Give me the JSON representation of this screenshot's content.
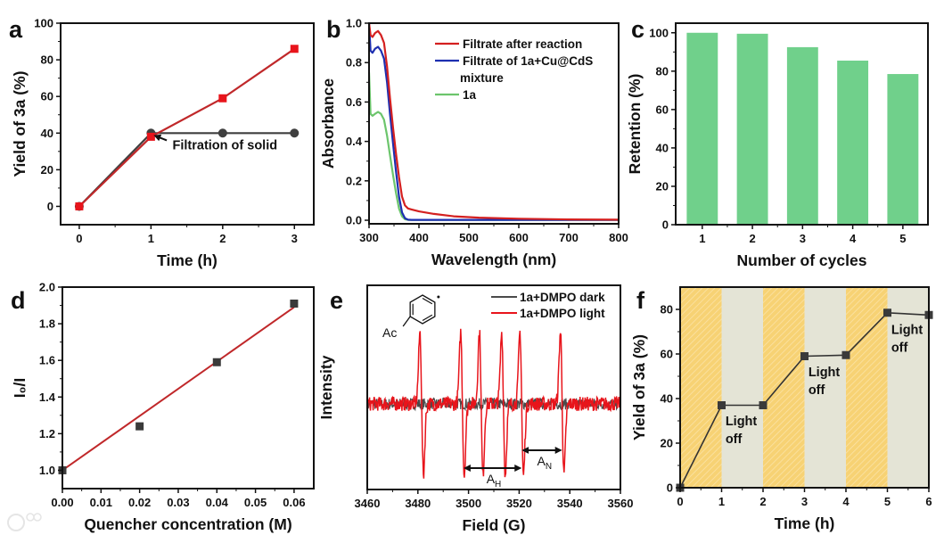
{
  "figure": {
    "watermark": "大数跨境"
  },
  "chart_data": [
    {
      "panel": "a",
      "type": "line",
      "xlabel": "Time (h)",
      "ylabel": "Yield of 3a (%)",
      "xlim": [
        -0.26,
        3.27
      ],
      "ylim": [
        -10,
        100
      ],
      "xticks": [
        "0",
        "1",
        "2",
        "3"
      ],
      "yticks": [
        "0",
        "20",
        "40",
        "60",
        "80",
        "100"
      ],
      "series": [
        {
          "marker": "circle",
          "color": "#3f3f3f",
          "line_color": "#3f3f3f",
          "x": [
            0,
            1,
            2,
            3
          ],
          "y": [
            0,
            40,
            40,
            40
          ]
        },
        {
          "marker": "square",
          "color": "#e8141b",
          "line_color": "#c0282a",
          "x": [
            0,
            1,
            2,
            3
          ],
          "y": [
            0,
            38,
            59,
            86
          ]
        }
      ],
      "annotations": [
        {
          "text": "Filtration of solid",
          "x": 1.3,
          "y": 33.5,
          "arrow_from": [
            1.22,
            36
          ],
          "arrow_to": [
            1.06,
            38.5
          ]
        }
      ]
    },
    {
      "panel": "b",
      "type": "line",
      "xlabel": "Wavelength (nm)",
      "ylabel": "Absorbance",
      "xlim": [
        300,
        800
      ],
      "ylim": [
        -0.018,
        1.0
      ],
      "xticks": [
        "300",
        "400",
        "500",
        "600",
        "700",
        "800"
      ],
      "yticks": [
        "0.0",
        "0.2",
        "0.4",
        "0.6",
        "0.8",
        "1.0"
      ],
      "x": [
        300,
        303,
        307,
        312,
        318,
        324,
        330,
        336,
        342,
        348,
        354,
        360,
        366,
        372,
        378,
        385,
        400,
        430,
        470,
        520,
        600,
        700,
        800
      ],
      "series": [
        {
          "color": "#d42020",
          "y": [
            1.0,
            0.94,
            0.93,
            0.95,
            0.96,
            0.94,
            0.9,
            0.78,
            0.62,
            0.47,
            0.34,
            0.22,
            0.12,
            0.075,
            0.06,
            0.055,
            0.045,
            0.032,
            0.02,
            0.013,
            0.008,
            0.004,
            0.003
          ]
        },
        {
          "color": "#1d2fb0",
          "y": [
            1.0,
            0.86,
            0.85,
            0.87,
            0.88,
            0.86,
            0.82,
            0.7,
            0.54,
            0.39,
            0.25,
            0.12,
            0.04,
            0.01,
            0.003,
            0.002,
            0.002,
            0.002,
            0.002,
            0.002,
            0.002,
            0.002,
            0.002
          ]
        },
        {
          "color": "#6cc56c",
          "y": [
            0.75,
            0.54,
            0.53,
            0.54,
            0.55,
            0.54,
            0.51,
            0.43,
            0.33,
            0.23,
            0.14,
            0.06,
            0.02,
            0.005,
            0.002,
            0.002,
            0.002,
            0.002,
            0.002,
            0.002,
            0.002,
            0.002,
            0.002
          ]
        }
      ],
      "legend": [
        [
          "Filtrate after reaction"
        ],
        [
          "Filtrate of 1a+Cu@CdS",
          "mixture"
        ],
        [
          "1a"
        ]
      ]
    },
    {
      "panel": "c",
      "type": "bar",
      "xlabel": "Number of cycles",
      "ylabel": "Retention (%)",
      "xlim": [
        0.47,
        5.5
      ],
      "ylim": [
        0,
        105
      ],
      "xticks": [
        "1",
        "2",
        "3",
        "4",
        "5"
      ],
      "yticks": [
        "0",
        "20",
        "40",
        "60",
        "80",
        "100"
      ],
      "categories": [
        1,
        2,
        3,
        4,
        5
      ],
      "values": [
        100,
        99.5,
        92.5,
        85.5,
        78.5
      ],
      "color": "#70d08b"
    },
    {
      "panel": "d",
      "type": "scatter",
      "xlabel": "Quencher concentration (M)",
      "ylabel": "I₀/I",
      "xlim": [
        0,
        0.0651
      ],
      "ylim": [
        0.9,
        2.0
      ],
      "xticks": [
        "0.00",
        "0.01",
        "0.02",
        "0.03",
        "0.04",
        "0.05",
        "0.06"
      ],
      "yticks": [
        "1.0",
        "1.2",
        "1.4",
        "1.6",
        "1.8",
        "2.0"
      ],
      "x": [
        0,
        0.02,
        0.04,
        0.06
      ],
      "y": [
        1.0,
        1.24,
        1.59,
        1.91
      ],
      "fit": {
        "x": [
          0,
          0.06
        ],
        "y": [
          1.0,
          1.89
        ],
        "color": "#c0282a"
      },
      "marker_color": "#3a3a3a"
    },
    {
      "panel": "e",
      "type": "line",
      "xlabel": "Field (G)",
      "ylabel": "Intensity",
      "xlim": [
        3460,
        3560
      ],
      "ylim": [
        -1.2,
        1.66
      ],
      "xticks": [
        "3460",
        "3480",
        "3500",
        "3520",
        "3540",
        "3560"
      ],
      "yticks": [],
      "series": [
        {
          "name": "1a+DMPO dark",
          "color": "#4a4a4a",
          "lines": []
        },
        {
          "name": "1a+DMPO light",
          "color": "#e8141b",
          "lines": [
            3481.5,
            3497.6,
            3505,
            3513.8,
            3521,
            3537
          ]
        }
      ],
      "molecule_label": "Ac",
      "arrows": [
        {
          "label": "A",
          "sub": "H",
          "x": [
            3498,
            3521
          ],
          "y": -0.9,
          "label_x": 3510
        },
        {
          "label": "A",
          "sub": "N",
          "x": [
            3521,
            3537
          ],
          "y": -0.65,
          "label_x": 3530
        }
      ]
    },
    {
      "panel": "f",
      "type": "line",
      "xlabel": "Time (h)",
      "ylabel": "Yield of 3a (%)",
      "xlim": [
        0,
        6
      ],
      "ylim": [
        0,
        90
      ],
      "xticks": [
        "0",
        "1",
        "2",
        "3",
        "4",
        "5",
        "6"
      ],
      "yticks": [
        "0",
        "20",
        "40",
        "60",
        "80"
      ],
      "x": [
        0,
        1,
        2,
        3,
        4,
        5,
        6
      ],
      "y": [
        0,
        37,
        37,
        59,
        59.5,
        78.5,
        77.5
      ],
      "light_on_intervals": [
        [
          0,
          1
        ],
        [
          2,
          3
        ],
        [
          4,
          5
        ]
      ],
      "light_on_color": "#f7d274",
      "light_off_color": "#e4e4d6",
      "annotations": [
        {
          "lines": [
            "Light",
            "off"
          ],
          "x": 1.05,
          "y": 28
        },
        {
          "lines": [
            "Light",
            "off"
          ],
          "x": 3.05,
          "y": 50
        },
        {
          "lines": [
            "Light",
            "off"
          ],
          "x": 5.05,
          "y": 69
        }
      ]
    }
  ]
}
